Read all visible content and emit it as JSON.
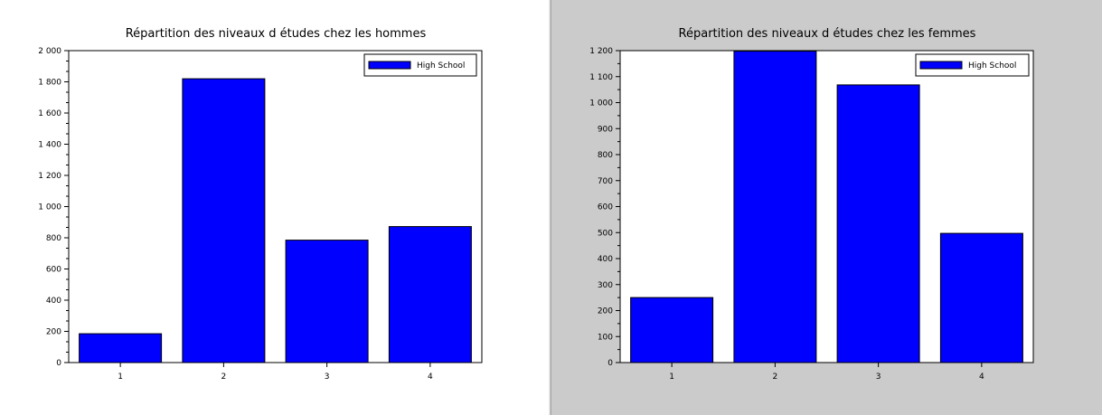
{
  "chart_data": [
    {
      "type": "bar",
      "title": "Répartition des niveaux d études chez les hommes",
      "categories": [
        "1",
        "2",
        "3",
        "4"
      ],
      "series": [
        {
          "name": "High School",
          "values": [
            185,
            1820,
            785,
            872
          ]
        }
      ],
      "ylim": [
        0,
        2000
      ],
      "yticks": [
        0,
        200,
        400,
        600,
        800,
        1000,
        1200,
        1400,
        1600,
        1800,
        2000
      ],
      "ytick_labels": [
        "0",
        "200",
        "400",
        "600",
        "800",
        "1 000",
        "1 200",
        "1 400",
        "1 600",
        "1 800",
        "2 000"
      ],
      "legend_position": "top-right",
      "bar_color": "#0000ff",
      "background": "#ffffff"
    },
    {
      "type": "bar",
      "title": "Répartition des niveaux d études chez les femmes",
      "categories": [
        "1",
        "2",
        "3",
        "4"
      ],
      "series": [
        {
          "name": "High School",
          "values": [
            250,
            1198,
            1068,
            497
          ]
        }
      ],
      "ylim": [
        0,
        1200
      ],
      "yticks": [
        0,
        100,
        200,
        300,
        400,
        500,
        600,
        700,
        800,
        900,
        1000,
        1100,
        1200
      ],
      "ytick_labels": [
        "0",
        "100",
        "200",
        "300",
        "400",
        "500",
        "600",
        "700",
        "800",
        "900",
        "1 000",
        "1 100",
        "1 200"
      ],
      "legend_position": "top-right",
      "bar_color": "#0000ff",
      "background": "#cbcbcb"
    }
  ]
}
